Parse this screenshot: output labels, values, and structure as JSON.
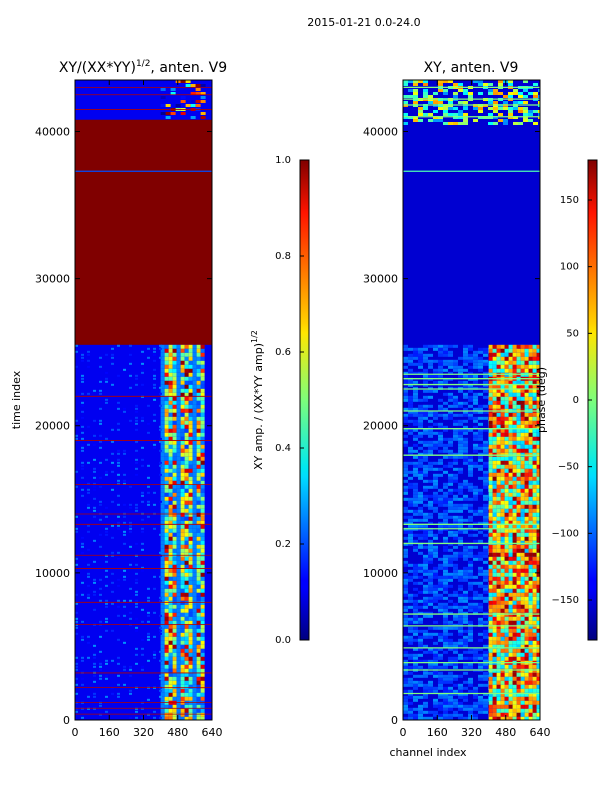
{
  "figure": {
    "suptitle": "2015-01-21 0.0-24.0"
  },
  "chart_data": [
    {
      "type": "heatmap",
      "title_main": "XY/(XX*YY)",
      "title_sup": "1/2",
      "title_suffix": ", anten. V9",
      "xlabel": "",
      "ylabel": "time index",
      "xlim": [
        0,
        640
      ],
      "ylim": [
        0,
        43500
      ],
      "xticks": [
        "0",
        "160",
        "320",
        "480",
        "640"
      ],
      "xtick_values": [
        0,
        160,
        320,
        480,
        640
      ],
      "yticks": [
        "0",
        "10000",
        "20000",
        "30000",
        "40000"
      ],
      "ytick_values": [
        0,
        10000,
        20000,
        30000,
        40000
      ],
      "colorbar": {
        "label_main": "XY amp. / (XX*YY amp)",
        "label_sup": "1/2",
        "range": [
          0.0,
          1.0
        ],
        "ticks": [
          "0.0",
          "0.2",
          "0.4",
          "0.6",
          "0.8",
          "1.0"
        ],
        "tick_values": [
          0.0,
          0.2,
          0.4,
          0.6,
          0.8,
          1.0
        ]
      },
      "saturated_time_range": [
        25500,
        40800
      ],
      "signal_channel_range": [
        400,
        600
      ]
    },
    {
      "type": "heatmap",
      "title_main": "XY, anten. V9",
      "xlabel": "channel index",
      "ylabel": "",
      "xlim": [
        0,
        640
      ],
      "ylim": [
        0,
        43500
      ],
      "xticks": [
        "0",
        "160",
        "320",
        "480",
        "640"
      ],
      "xtick_values": [
        0,
        160,
        320,
        480,
        640
      ],
      "yticks": [
        "0",
        "10000",
        "20000",
        "30000",
        "40000"
      ],
      "ytick_values": [
        0,
        10000,
        20000,
        30000,
        40000
      ],
      "colorbar": {
        "label_main": "phase (deg)",
        "range": [
          -180,
          180
        ],
        "ticks": [
          "150",
          "100",
          "50",
          "0",
          "−50",
          "−100",
          "−150"
        ],
        "tick_values": [
          150,
          100,
          50,
          0,
          -50,
          -100,
          -150
        ]
      },
      "signal_channel_range": [
        400,
        640
      ]
    }
  ]
}
